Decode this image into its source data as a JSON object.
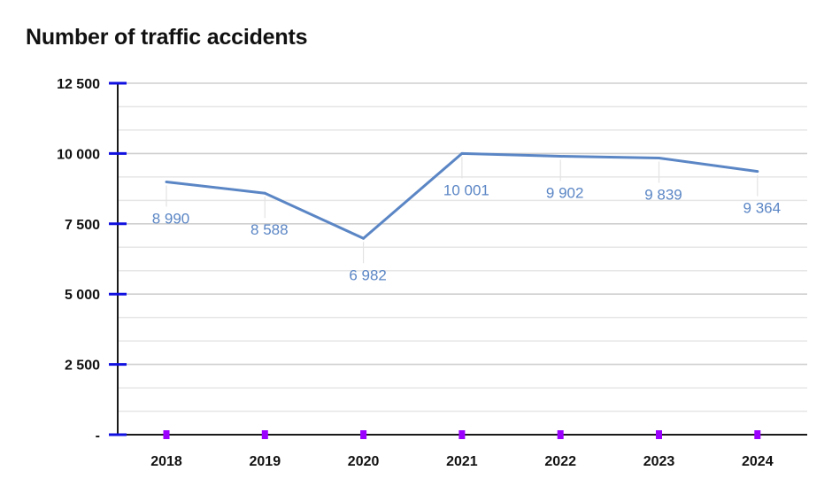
{
  "chart_data": {
    "type": "line",
    "title": "Number of traffic accidents",
    "xlabel": "",
    "ylabel": "",
    "categories": [
      "2018",
      "2019",
      "2020",
      "2021",
      "2022",
      "2023",
      "2024"
    ],
    "series": [
      {
        "name": "Number of traffic accidents",
        "values": [
          8990,
          8588,
          6982,
          10001,
          9902,
          9839,
          9364
        ],
        "labels": [
          "8 990",
          "8 588",
          "6 982",
          "10 001",
          "9 902",
          "9 839",
          "9 364"
        ],
        "color": "#5b86c5"
      }
    ],
    "ylim": [
      0,
      12500
    ],
    "yticks": [
      0,
      2500,
      5000,
      7500,
      10000,
      12500
    ],
    "ytick_labels": [
      "-",
      "2 500",
      "5 000",
      "7 500",
      "10 000",
      "12 500"
    ],
    "minor_gridlines_per_major": 3,
    "grid": true,
    "legend": "none",
    "colors": {
      "line": "#5b86c5",
      "ytick_mark": "#1010e0",
      "xtick_marker": "#9b00ff",
      "grid_major": "#cfcfcf",
      "grid_minor": "#e6e6e6",
      "axis": "#1a1a1a"
    }
  }
}
